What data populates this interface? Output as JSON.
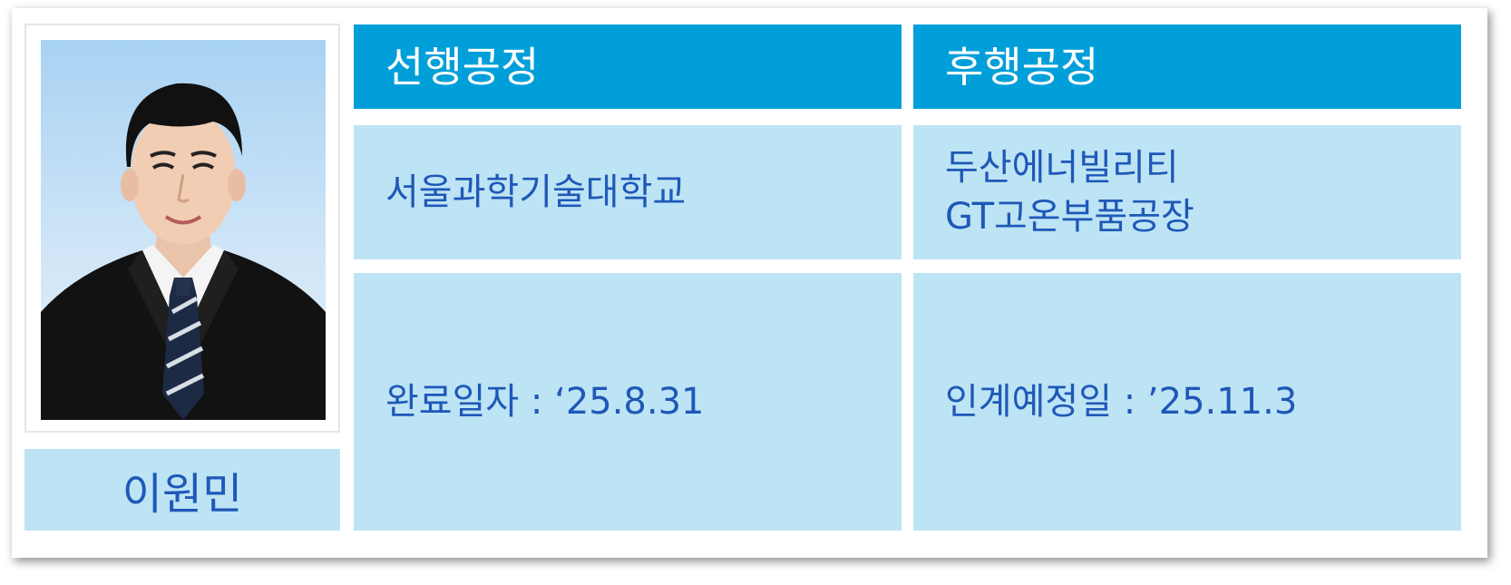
{
  "person": {
    "name": "이원민"
  },
  "table": {
    "headers": [
      "선행공정",
      "후행공정"
    ],
    "origin": "서울과학기술대학교",
    "destination_line1": "두산에너빌리티",
    "destination_line2": "GT고온부품공장",
    "completion": "완료일자 : ‘25.8.31",
    "handover": "인계예정일 : ’25.11.3"
  },
  "colors": {
    "header_bg": "#009fd9",
    "cell_bg": "#bde4f4",
    "text": "#1f58b8"
  }
}
